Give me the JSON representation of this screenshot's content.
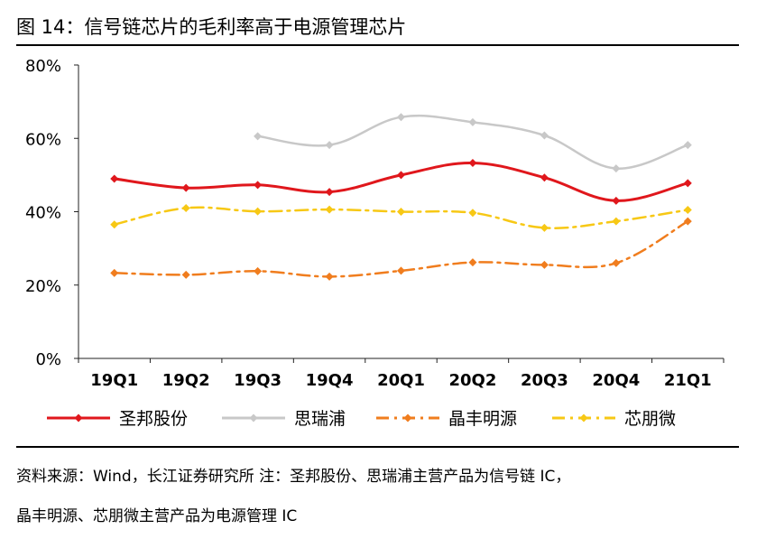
{
  "figure": {
    "title": "图  14：信号链芯片的毛利率高于电源管理芯片",
    "source_note_line1": "资料来源：Wind，长江证券研究所    注：圣邦股份、思瑞浦主营产品为信号链 IC，",
    "source_note_line2": "晶丰明源、芯朋微主营产品为电源管理 IC"
  },
  "chart_data": {
    "type": "line",
    "title": "图  14：信号链芯片的毛利率高于电源管理芯片",
    "categories": [
      "19Q1",
      "19Q2",
      "19Q3",
      "19Q4",
      "20Q1",
      "20Q2",
      "20Q3",
      "20Q4",
      "21Q1"
    ],
    "y_ticks": [
      "0%",
      "20%",
      "40%",
      "60%",
      "80%"
    ],
    "ylim": [
      0,
      80
    ],
    "grid": false,
    "legend_position": "bottom",
    "series": [
      {
        "name": "圣邦股份",
        "color": "#e0171c",
        "dash": "solid",
        "values": [
          49.0,
          46.5,
          47.3,
          45.4,
          50.0,
          53.3,
          49.3,
          43.0,
          47.8
        ]
      },
      {
        "name": "思瑞浦",
        "color": "#c8c8c8",
        "dash": "solid",
        "values": [
          null,
          null,
          60.6,
          58.2,
          65.8,
          64.4,
          60.8,
          51.8,
          58.2
        ]
      },
      {
        "name": "晶丰明源",
        "color": "#f07d1e",
        "dash": "dash-dot",
        "values": [
          23.3,
          22.8,
          23.8,
          22.3,
          23.9,
          26.2,
          25.5,
          26.0,
          37.4
        ]
      },
      {
        "name": "芯朋微",
        "color": "#f7c815",
        "dash": "dash-dot",
        "values": [
          36.5,
          41.0,
          40.1,
          40.6,
          40.0,
          39.7,
          35.6,
          37.4,
          40.5
        ]
      }
    ]
  }
}
